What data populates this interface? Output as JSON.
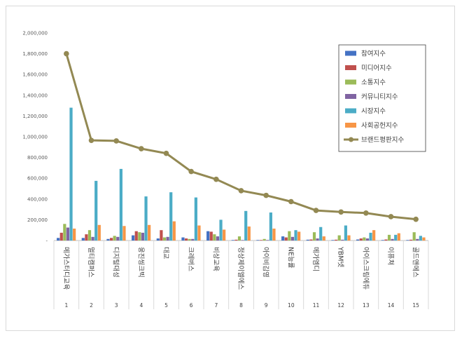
{
  "chart_data": {
    "type": "bar+line",
    "title": "",
    "xlabel": "",
    "ylabel": "",
    "ylim": [
      0,
      2000000
    ],
    "yticks": [
      0,
      200000,
      400000,
      600000,
      800000,
      1000000,
      1200000,
      1400000,
      1600000,
      1800000,
      2000000
    ],
    "ytick_labels": [
      "-",
      "200,000",
      "400,000",
      "600,000",
      "800,000",
      "1,000,000",
      "1,200,000",
      "1,400,000",
      "1,600,000",
      "1,800,000",
      "2,000,000"
    ],
    "ranks": [
      "1",
      "2",
      "3",
      "4",
      "5",
      "6",
      "7",
      "8",
      "9",
      "10",
      "11",
      "12",
      "13",
      "14",
      "15"
    ],
    "categories": [
      "메가스터디교육",
      "멀티캠퍼스",
      "디지털대성",
      "웅진씽크빅",
      "대교",
      "크레버스",
      "비상교육",
      "정상제이엘에스",
      "아이비김영",
      "NE능률",
      "메가엠디",
      "YBM넷",
      "아이스크림에듀",
      "이퓨쳐",
      "골드앤에스"
    ],
    "series": [
      {
        "name": "참여지수",
        "color": "#4472c4",
        "type": "bar",
        "values": [
          25000,
          25000,
          15000,
          50000,
          20000,
          30000,
          90000,
          5000,
          5000,
          40000,
          8000,
          5000,
          10000,
          5000,
          5000
        ]
      },
      {
        "name": "미디어지수",
        "color": "#c0504d",
        "type": "bar",
        "values": [
          75000,
          60000,
          25000,
          90000,
          100000,
          20000,
          85000,
          8000,
          5000,
          30000,
          10000,
          8000,
          20000,
          10000,
          8000
        ]
      },
      {
        "name": "소통지수",
        "color": "#9bbb59",
        "type": "bar",
        "values": [
          160000,
          100000,
          45000,
          80000,
          30000,
          15000,
          60000,
          40000,
          15000,
          90000,
          80000,
          50000,
          30000,
          55000,
          80000
        ]
      },
      {
        "name": "커뮤니티지수",
        "color": "#8064a2",
        "type": "bar",
        "values": [
          125000,
          35000,
          35000,
          75000,
          35000,
          15000,
          40000,
          5000,
          5000,
          35000,
          20000,
          8000,
          20000,
          15000,
          15000
        ]
      },
      {
        "name": "시장지수",
        "color": "#4bacc6",
        "type": "bar",
        "values": [
          1280000,
          575000,
          690000,
          425000,
          465000,
          415000,
          200000,
          285000,
          270000,
          100000,
          130000,
          145000,
          75000,
          55000,
          45000
        ]
      },
      {
        "name": "사회공헌지수",
        "color": "#f79646",
        "type": "bar",
        "values": [
          115000,
          150000,
          140000,
          150000,
          185000,
          145000,
          105000,
          135000,
          115000,
          85000,
          40000,
          50000,
          100000,
          70000,
          30000
        ]
      },
      {
        "name": "브랜드평판지수",
        "color": "#938953",
        "type": "line",
        "values": [
          1800000,
          965000,
          960000,
          885000,
          840000,
          665000,
          590000,
          480000,
          435000,
          375000,
          290000,
          275000,
          265000,
          230000,
          205000
        ]
      }
    ],
    "legend_position": "top-right",
    "grid": false
  }
}
